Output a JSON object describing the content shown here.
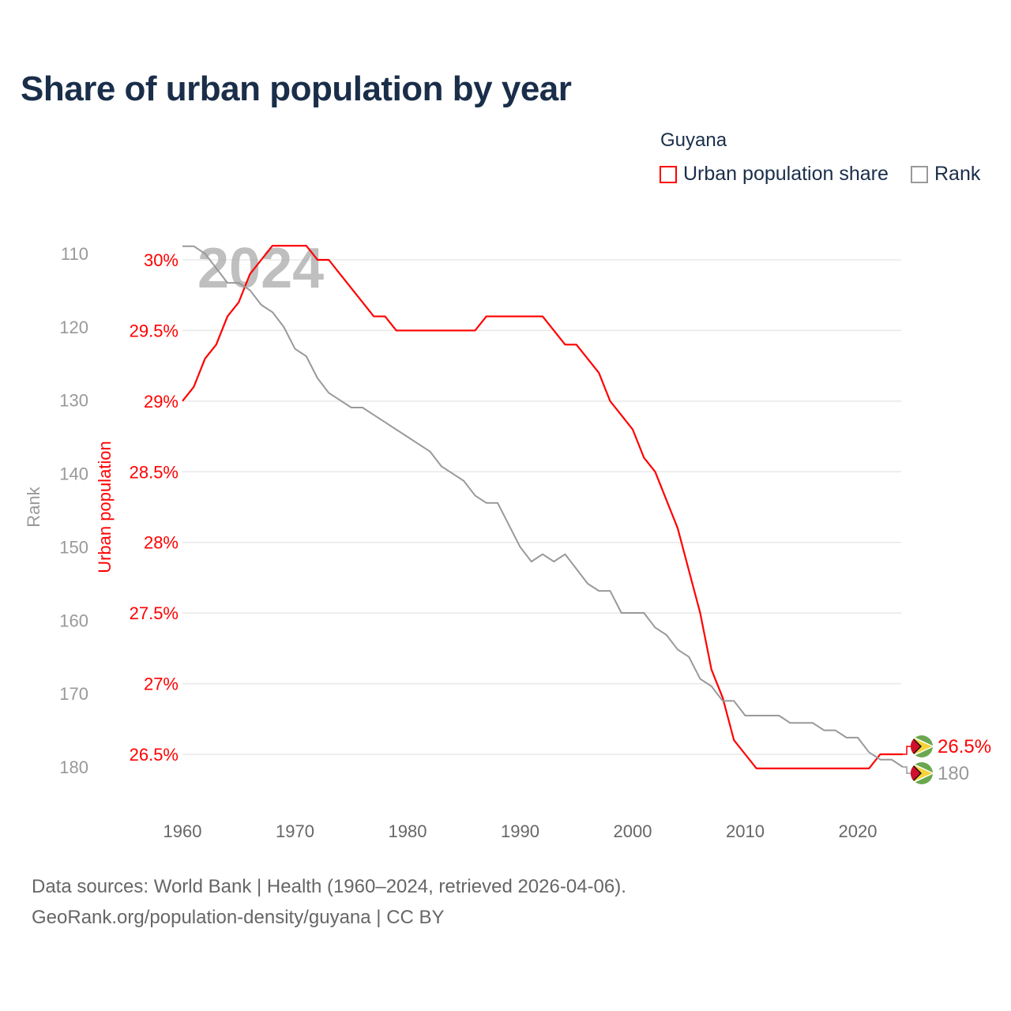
{
  "title": "Share of urban population by year",
  "legend": {
    "title": "Guyana",
    "items": [
      {
        "label": "Urban population share",
        "color": "#ff0000"
      },
      {
        "label": "Rank",
        "color": "#999999"
      }
    ]
  },
  "footer": {
    "line1": "Data sources: World Bank | Health (1960–2024, retrieved 2026-04-06).",
    "line2": "GeoRank.org/population-density/guyana | CC BY"
  },
  "chart_data": {
    "type": "line",
    "title": "Share of urban population by year",
    "watermark_year": "2024",
    "xlim": [
      1960,
      2024
    ],
    "x_ticks": [
      "1960",
      "1970",
      "1980",
      "1990",
      "2000",
      "2010",
      "2020"
    ],
    "y_left_outer": {
      "label": "Rank",
      "lim": [
        110,
        180
      ],
      "inverted": true,
      "ticks": [
        "110",
        "120",
        "130",
        "140",
        "150",
        "160",
        "170",
        "180"
      ]
    },
    "y_left_inner": {
      "label": "Urban population",
      "lim": [
        26.5,
        30
      ],
      "ticks": [
        "30%",
        "29.5%",
        "29%",
        "28.5%",
        "28%",
        "27.5%",
        "27%",
        "26.5%"
      ]
    },
    "grid": true,
    "x": [
      1960,
      1961,
      1962,
      1963,
      1964,
      1965,
      1966,
      1967,
      1968,
      1969,
      1970,
      1971,
      1972,
      1973,
      1974,
      1975,
      1976,
      1977,
      1978,
      1979,
      1980,
      1981,
      1982,
      1983,
      1984,
      1985,
      1986,
      1987,
      1988,
      1989,
      1990,
      1991,
      1992,
      1993,
      1994,
      1995,
      1996,
      1997,
      1998,
      1999,
      2000,
      2001,
      2002,
      2003,
      2004,
      2005,
      2006,
      2007,
      2008,
      2009,
      2010,
      2011,
      2012,
      2013,
      2014,
      2015,
      2016,
      2017,
      2018,
      2019,
      2020,
      2021,
      2022,
      2023,
      2024
    ],
    "series": [
      {
        "name": "Urban population share",
        "color": "#ff0000",
        "axis": "urban",
        "values": [
          29.0,
          29.1,
          29.3,
          29.4,
          29.6,
          29.7,
          29.9,
          30.0,
          30.1,
          30.1,
          30.1,
          30.1,
          30.0,
          30.0,
          29.9,
          29.8,
          29.7,
          29.6,
          29.6,
          29.5,
          29.5,
          29.5,
          29.5,
          29.5,
          29.5,
          29.5,
          29.5,
          29.6,
          29.6,
          29.6,
          29.6,
          29.6,
          29.6,
          29.5,
          29.4,
          29.4,
          29.3,
          29.2,
          29.0,
          28.9,
          28.8,
          28.6,
          28.5,
          28.3,
          28.1,
          27.8,
          27.5,
          27.1,
          26.9,
          26.6,
          26.5,
          26.4,
          26.4,
          26.4,
          26.4,
          26.4,
          26.4,
          26.4,
          26.4,
          26.4,
          26.4,
          26.4,
          26.5,
          26.5,
          26.5
        ],
        "end_label": "26.5%"
      },
      {
        "name": "Rank",
        "color": "#999999",
        "axis": "rank",
        "values": [
          109,
          109,
          110,
          112,
          114,
          114,
          115,
          117,
          118,
          120,
          123,
          124,
          127,
          129,
          130,
          131,
          131,
          132,
          133,
          134,
          135,
          136,
          137,
          139,
          140,
          141,
          143,
          144,
          144,
          147,
          150,
          152,
          151,
          152,
          151,
          153,
          155,
          156,
          156,
          159,
          159,
          159,
          161,
          162,
          164,
          165,
          168,
          169,
          171,
          171,
          173,
          173,
          173,
          173,
          174,
          174,
          174,
          175,
          175,
          176,
          176,
          178,
          179,
          179,
          180
        ],
        "end_label": "180"
      }
    ],
    "end_marker_icon": "guyana-flag-icon"
  }
}
